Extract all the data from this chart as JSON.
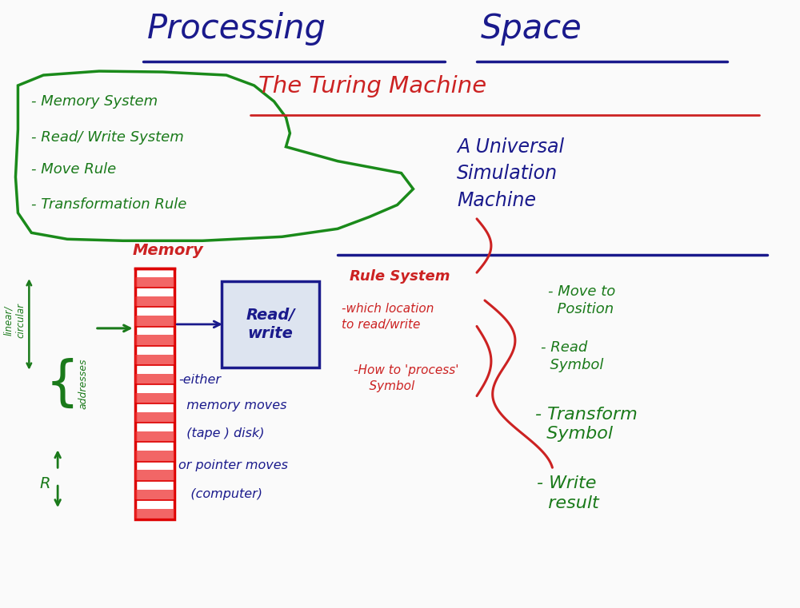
{
  "bg_color": "#FAFAFA",
  "title1": "Processing",
  "title2": "Space",
  "title_color": "#1a1a8c",
  "turing_title": "The Turing Machine",
  "turing_color": "#cc2222",
  "universal_text": "A Universal\nSimulation\nMachine",
  "universal_color": "#1a1a8c",
  "bullet_items": [
    "- Memory System",
    "- Read/ Write System",
    "- Move Rule",
    "- Transformation Rule"
  ],
  "bullet_color": "#1a7a1a",
  "memory_label": "Memory",
  "memory_label_color": "#cc2222",
  "read_write_text": "Read/\nwrite",
  "read_write_color": "#1a1a8c",
  "rule_system_text": "Rule System",
  "rule_detail1": "-which location\nto read/write",
  "rule_detail2": "-How to 'process'\n    Symbol",
  "rule_color": "#cc2222",
  "right_bullets": [
    "- Move to\n  Position",
    "- Read\n  Symbol",
    "- Transform\n  Symbol",
    "- Write\n  result"
  ],
  "right_color": "#1a7a1a",
  "bottom_text_line1": "-either",
  "bottom_text_line2": "  memory moves",
  "bottom_text_line3": "  (tape ) disk)",
  "bottom_text_line4": "or pointer moves",
  "bottom_text_line5": "   (computer)",
  "bottom_left_color": "#1a1a8c",
  "linear_circular": "linear/\ncircular",
  "addresses": "addresses",
  "R_label": "R"
}
